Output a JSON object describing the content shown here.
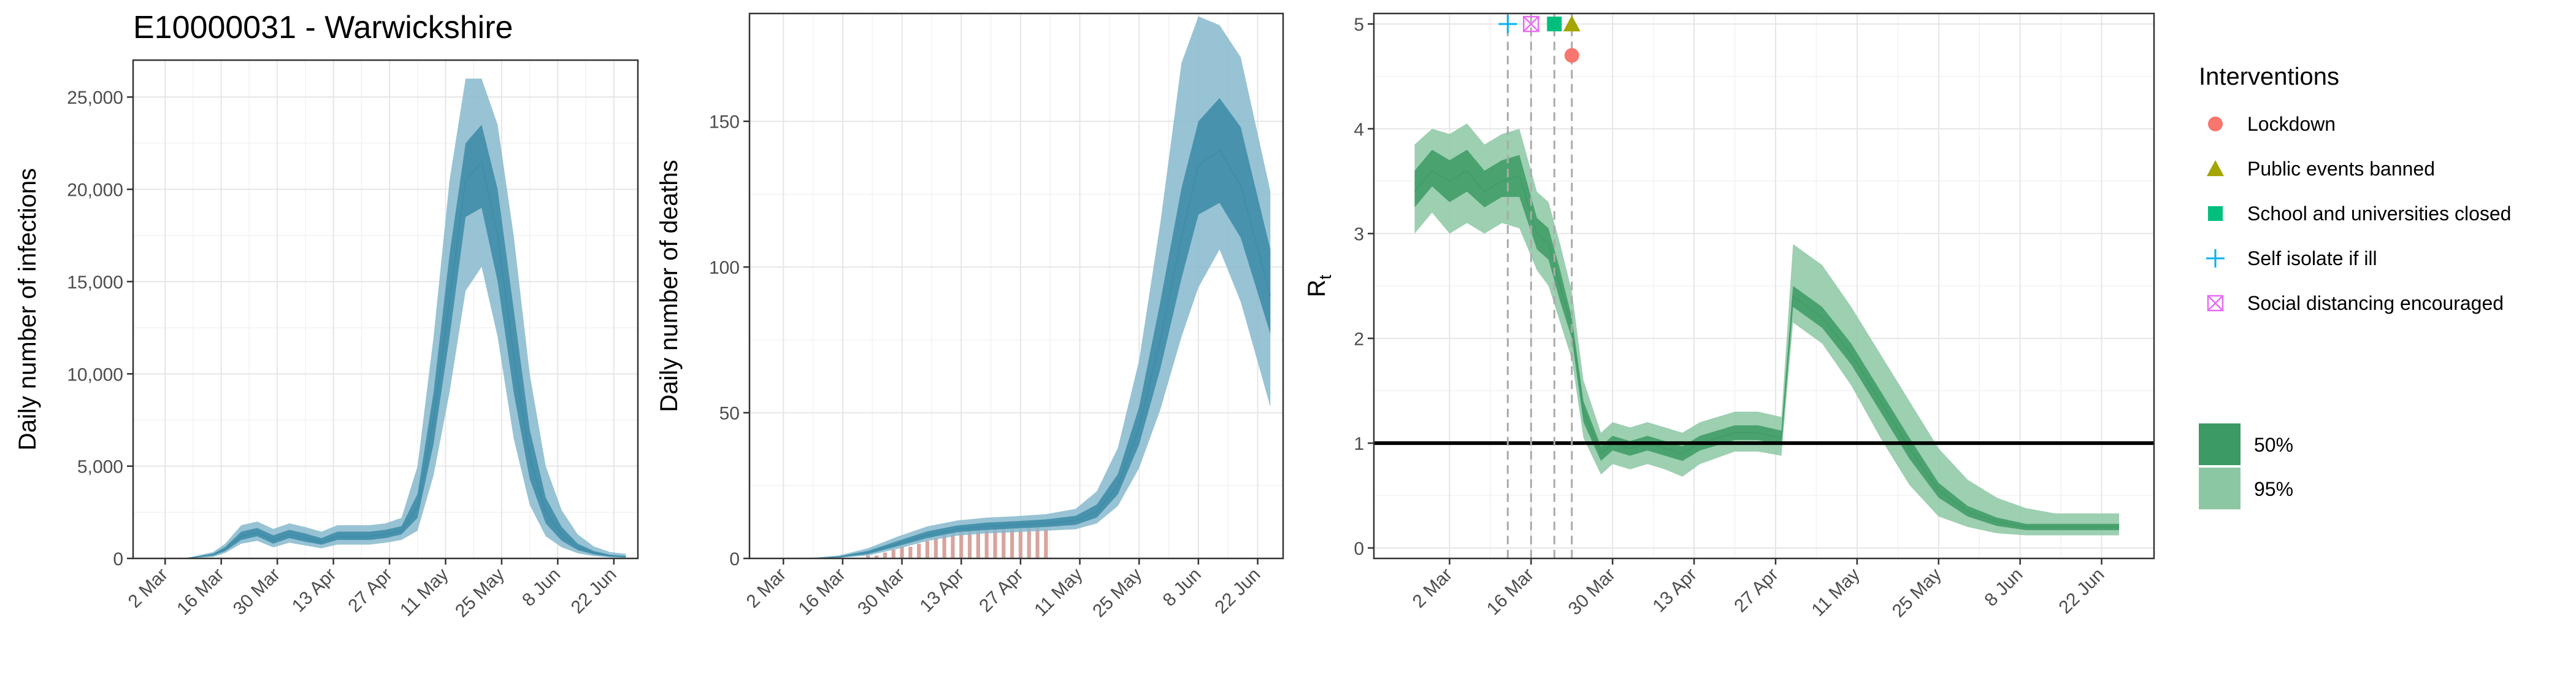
{
  "colors": {
    "infection_dark": "#3a8aa6",
    "infection_light": "#86b9cc",
    "rt_dark": "#3c9a64",
    "rt_light": "#8cc7a3",
    "observed_deaths": "#d49a94",
    "lockdown": "#f8766d",
    "public_events": "#a3a500",
    "schools": "#00bf7d",
    "self_isolate": "#00b0f6",
    "social_distancing": "#e76bf3"
  },
  "chart_data": [
    {
      "type": "area",
      "title": "E10000031 - Warwickshire",
      "ylabel": "Daily number of infections",
      "xlabel": "",
      "x_ticks": [
        "2 Mar",
        "16 Mar",
        "30 Mar",
        "13 Apr",
        "27 Apr",
        "11 May",
        "25 May",
        "8 Jun",
        "22 Jun"
      ],
      "y_ticks": [
        "0",
        "5,000",
        "10,000",
        "15,000",
        "20,000",
        "25,000"
      ],
      "ylim": [
        0,
        27000
      ],
      "xlim": [
        "2020-02-23",
        "2020-06-28"
      ],
      "grid": true,
      "dates": [
        "2020-03-07",
        "2020-03-14",
        "2020-03-17",
        "2020-03-21",
        "2020-03-25",
        "2020-03-29",
        "2020-04-02",
        "2020-04-06",
        "2020-04-10",
        "2020-04-14",
        "2020-04-18",
        "2020-04-22",
        "2020-04-26",
        "2020-04-30",
        "2020-05-04",
        "2020-05-08",
        "2020-05-12",
        "2020-05-16",
        "2020-05-20",
        "2020-05-24",
        "2020-05-28",
        "2020-06-01",
        "2020-06-05",
        "2020-06-09",
        "2020-06-13",
        "2020-06-17",
        "2020-06-21",
        "2020-06-25"
      ],
      "median": [
        0,
        200,
        500,
        1200,
        1400,
        1000,
        1300,
        1100,
        900,
        1200,
        1200,
        1200,
        1300,
        1500,
        2800,
        7500,
        14000,
        20500,
        21500,
        17500,
        11000,
        5500,
        2500,
        1300,
        600,
        300,
        150,
        100
      ],
      "lower_50": [
        0,
        150,
        400,
        1000,
        1200,
        800,
        1100,
        900,
        750,
        1000,
        1000,
        1000,
        1100,
        1300,
        2200,
        6200,
        12000,
        18500,
        19000,
        15000,
        9000,
        4300,
        1900,
        950,
        450,
        220,
        100,
        60
      ],
      "upper_50": [
        0,
        260,
        620,
        1450,
        1650,
        1250,
        1550,
        1350,
        1100,
        1450,
        1450,
        1450,
        1550,
        1750,
        3500,
        9000,
        16500,
        22500,
        23500,
        20000,
        13500,
        7000,
        3300,
        1700,
        800,
        400,
        200,
        130
      ],
      "lower_95": [
        0,
        80,
        300,
        800,
        950,
        600,
        850,
        700,
        550,
        750,
        750,
        750,
        850,
        1000,
        1500,
        4500,
        9000,
        14500,
        15800,
        12000,
        6500,
        2900,
        1200,
        600,
        280,
        130,
        60,
        30
      ],
      "upper_95": [
        0,
        350,
        800,
        1800,
        2000,
        1600,
        1900,
        1700,
        1450,
        1800,
        1800,
        1800,
        1900,
        2200,
        5000,
        12000,
        20500,
        26000,
        26000,
        23500,
        17500,
        10000,
        5000,
        2600,
        1300,
        650,
        350,
        250
      ]
    },
    {
      "type": "area",
      "title": "",
      "ylabel": "Daily number of deaths",
      "xlabel": "",
      "x_ticks": [
        "2 Mar",
        "16 Mar",
        "30 Mar",
        "13 Apr",
        "27 Apr",
        "11 May",
        "25 May",
        "8 Jun",
        "22 Jun"
      ],
      "y_ticks": [
        "0",
        "50",
        "100",
        "150"
      ],
      "ylim": [
        0,
        187
      ],
      "xlim": [
        "2020-02-23",
        "2020-06-28"
      ],
      "grid": true,
      "dates": [
        "2020-03-01",
        "2020-03-08",
        "2020-03-15",
        "2020-03-22",
        "2020-03-29",
        "2020-04-05",
        "2020-04-12",
        "2020-04-19",
        "2020-04-26",
        "2020-05-03",
        "2020-05-10",
        "2020-05-15",
        "2020-05-20",
        "2020-05-25",
        "2020-05-30",
        "2020-06-04",
        "2020-06-08",
        "2020-06-13",
        "2020-06-18",
        "2020-06-25"
      ],
      "median": [
        0,
        0,
        0.5,
        2,
        5,
        8,
        10,
        11,
        11.5,
        12,
        13,
        16,
        25,
        45,
        75,
        110,
        135,
        140,
        128,
        90
      ],
      "lower_50": [
        0,
        0,
        0.3,
        1.5,
        4.2,
        7,
        9,
        9.8,
        10.3,
        10.8,
        11.5,
        14,
        22,
        39,
        65,
        96,
        118,
        122,
        110,
        77
      ],
      "upper_50": [
        0,
        0,
        0.7,
        2.6,
        6,
        9.3,
        11.3,
        12.3,
        12.8,
        13.4,
        14.6,
        18.5,
        29,
        52,
        88,
        127,
        150,
        158,
        148,
        106
      ],
      "lower_95": [
        0,
        0,
        0.2,
        1,
        3.3,
        6,
        7.8,
        8.6,
        9,
        9.5,
        10,
        12,
        18,
        31,
        51,
        76,
        93,
        106,
        88,
        52
      ],
      "upper_95": [
        0,
        0,
        1,
        3.5,
        7.5,
        11,
        13,
        14,
        14.5,
        15.2,
        17,
        23,
        38,
        68,
        115,
        170,
        186,
        183,
        172,
        126
      ],
      "observed_dates": [
        "2020-03-22",
        "2020-03-24",
        "2020-03-26",
        "2020-03-28",
        "2020-03-30",
        "2020-04-01",
        "2020-04-03",
        "2020-04-05",
        "2020-04-07",
        "2020-04-09",
        "2020-04-11",
        "2020-04-13",
        "2020-04-15",
        "2020-04-17",
        "2020-04-19",
        "2020-04-21",
        "2020-04-23",
        "2020-04-25",
        "2020-04-27",
        "2020-04-29",
        "2020-05-01",
        "2020-05-03"
      ],
      "observed_deaths": [
        1,
        1,
        2,
        3,
        4,
        4,
        5,
        6,
        7,
        8,
        9,
        9,
        10,
        10,
        10,
        11,
        11,
        10,
        10,
        11,
        11,
        10
      ]
    },
    {
      "type": "area",
      "title": "",
      "ylabel": "R",
      "ylabel_subscript": "t",
      "xlabel": "",
      "x_ticks": [
        "2 Mar",
        "16 Mar",
        "30 Mar",
        "13 Apr",
        "27 Apr",
        "11 May",
        "25 May",
        "8 Jun",
        "22 Jun"
      ],
      "y_ticks": [
        "0",
        "1",
        "2",
        "3",
        "4",
        "5"
      ],
      "ylim": [
        -0.1,
        5.1
      ],
      "xlim": [
        "2020-02-18",
        "2020-07-01"
      ],
      "grid": true,
      "reference_line": 1,
      "dates": [
        "2020-02-25",
        "2020-02-28",
        "2020-03-02",
        "2020-03-05",
        "2020-03-08",
        "2020-03-11",
        "2020-03-14",
        "2020-03-17",
        "2020-03-19",
        "2020-03-21",
        "2020-03-23",
        "2020-03-25",
        "2020-03-28",
        "2020-03-30",
        "2020-04-02",
        "2020-04-05",
        "2020-04-08",
        "2020-04-11",
        "2020-04-14",
        "2020-04-17",
        "2020-04-20",
        "2020-04-24",
        "2020-04-28",
        "2020-04-30",
        "2020-05-05",
        "2020-05-10",
        "2020-05-15",
        "2020-05-20",
        "2020-05-25",
        "2020-05-30",
        "2020-06-04",
        "2020-06-09",
        "2020-06-14",
        "2020-06-19",
        "2020-06-25"
      ],
      "median": [
        3.4,
        3.6,
        3.5,
        3.6,
        3.4,
        3.5,
        3.55,
        3.0,
        2.9,
        2.5,
        2.1,
        1.3,
        0.9,
        1.0,
        0.95,
        1.0,
        0.95,
        0.9,
        1.0,
        1.05,
        1.1,
        1.1,
        1.05,
        2.4,
        2.2,
        1.85,
        1.4,
        0.95,
        0.55,
        0.35,
        0.25,
        0.2,
        0.2,
        0.2,
        0.2
      ],
      "lower_50": [
        3.25,
        3.45,
        3.3,
        3.4,
        3.25,
        3.35,
        3.35,
        2.85,
        2.75,
        2.35,
        2.0,
        1.2,
        0.83,
        0.93,
        0.88,
        0.93,
        0.88,
        0.83,
        0.93,
        0.98,
        1.03,
        1.03,
        0.98,
        2.3,
        2.1,
        1.75,
        1.3,
        0.85,
        0.48,
        0.3,
        0.21,
        0.17,
        0.17,
        0.17,
        0.17
      ],
      "upper_50": [
        3.6,
        3.8,
        3.7,
        3.8,
        3.6,
        3.7,
        3.75,
        3.15,
        3.05,
        2.65,
        2.2,
        1.4,
        0.97,
        1.07,
        1.02,
        1.07,
        1.02,
        0.97,
        1.07,
        1.12,
        1.17,
        1.17,
        1.12,
        2.5,
        2.3,
        1.95,
        1.5,
        1.05,
        0.62,
        0.4,
        0.29,
        0.23,
        0.23,
        0.23,
        0.23
      ],
      "lower_95": [
        3.0,
        3.2,
        3.0,
        3.1,
        3.0,
        3.1,
        3.05,
        2.65,
        2.5,
        2.15,
        1.8,
        1.05,
        0.7,
        0.8,
        0.75,
        0.8,
        0.75,
        0.68,
        0.8,
        0.86,
        0.92,
        0.92,
        0.88,
        2.15,
        1.95,
        1.55,
        1.05,
        0.6,
        0.3,
        0.2,
        0.14,
        0.12,
        0.12,
        0.12,
        0.12
      ],
      "upper_95": [
        3.85,
        4.0,
        3.95,
        4.05,
        3.85,
        3.95,
        4.0,
        3.4,
        3.3,
        2.9,
        2.45,
        1.6,
        1.1,
        1.2,
        1.15,
        1.2,
        1.15,
        1.1,
        1.2,
        1.25,
        1.3,
        1.3,
        1.25,
        2.9,
        2.7,
        2.3,
        1.85,
        1.4,
        0.95,
        0.65,
        0.48,
        0.38,
        0.33,
        0.33,
        0.33
      ],
      "interventions": [
        {
          "label": "Lockdown",
          "date": "2020-03-23",
          "marker": "circle",
          "value": 4.7,
          "color_key": "lockdown"
        },
        {
          "label": "Public events banned",
          "date": "2020-03-23",
          "marker": "triangle",
          "value": 5.0,
          "color_key": "public_events"
        },
        {
          "label": "School and universities closed",
          "date": "2020-03-20",
          "marker": "square",
          "value": 5.0,
          "color_key": "schools"
        },
        {
          "label": "Self isolate if ill",
          "date": "2020-03-12",
          "marker": "plus",
          "value": 5.0,
          "color_key": "self_isolate"
        },
        {
          "label": "Social distancing encouraged",
          "date": "2020-03-16",
          "marker": "boxx",
          "value": 5.0,
          "color_key": "social_distancing"
        }
      ]
    }
  ],
  "legend": {
    "title": "Interventions",
    "items": [
      {
        "label": "Lockdown",
        "marker": "circle",
        "color_key": "lockdown"
      },
      {
        "label": "Public events banned",
        "marker": "triangle",
        "color_key": "public_events"
      },
      {
        "label": "School and universities closed",
        "marker": "square",
        "color_key": "schools"
      },
      {
        "label": "Self isolate if ill",
        "marker": "plus",
        "color_key": "self_isolate"
      },
      {
        "label": "Social distancing encouraged",
        "marker": "boxx",
        "color_key": "social_distancing"
      }
    ],
    "ci": [
      {
        "label": "50%",
        "color_key": "rt_dark"
      },
      {
        "label": "95%",
        "color_key": "rt_light"
      }
    ]
  }
}
